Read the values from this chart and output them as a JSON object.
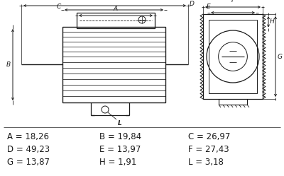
{
  "background_color": "#ffffff",
  "measurements": [
    {
      "label": "A",
      "value": "18,26"
    },
    {
      "label": "B",
      "value": "19,84"
    },
    {
      "label": "C",
      "value": "26,97"
    },
    {
      "label": "D",
      "value": "49,23"
    },
    {
      "label": "E",
      "value": "13,97"
    },
    {
      "label": "F",
      "value": "27,43"
    },
    {
      "label": "G",
      "value": "13,87"
    },
    {
      "label": "H",
      "value": "1,91"
    },
    {
      "label": "L",
      "value": "3,18"
    }
  ],
  "line_color": "#1a1a1a",
  "text_color": "#1a1a1a",
  "fig_width": 4.0,
  "fig_height": 2.49,
  "dpi": 100
}
